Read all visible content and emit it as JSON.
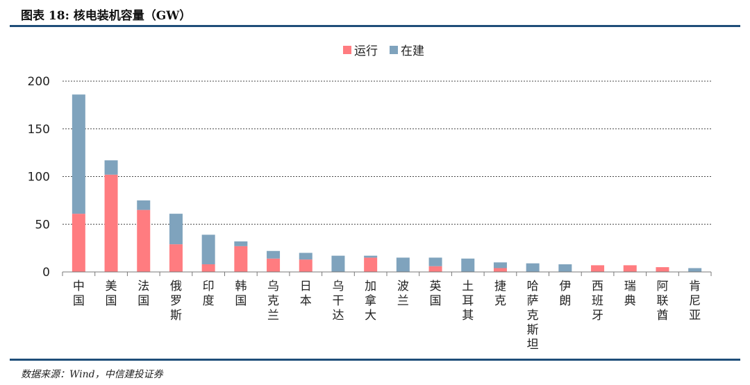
{
  "figure": {
    "title": "图表 18: 核电装机容量（GW）",
    "source": "数据来源：Wind，中信建投证券"
  },
  "colors": {
    "running": "#ff7c80",
    "building": "#7fa3bd",
    "rule": "#1f4e79"
  },
  "chart_data": {
    "type": "bar",
    "stacked": true,
    "title": "",
    "xlabel": "",
    "ylabel": "",
    "ylim": [
      0,
      200
    ],
    "yticks": [
      0,
      50,
      100,
      150,
      200
    ],
    "grid": "horizontal dashed",
    "legend_position": "top-center",
    "categories": [
      "中国",
      "美国",
      "法国",
      "俄罗斯",
      "印度",
      "韩国",
      "乌克兰",
      "日本",
      "乌干达",
      "加拿大",
      "波兰",
      "英国",
      "土耳其",
      "捷克",
      "哈萨克斯坦",
      "伊朗",
      "西班牙",
      "瑞典",
      "阿联酋",
      "肯尼亚"
    ],
    "series": [
      {
        "name": "运行",
        "values": [
          61,
          102,
          65,
          29,
          8,
          27,
          14,
          13,
          0,
          15,
          0,
          6,
          0,
          4,
          0,
          0,
          7,
          7,
          5,
          0
        ]
      },
      {
        "name": "在建",
        "values": [
          125,
          15,
          10,
          32,
          31,
          5,
          8,
          7,
          17,
          2,
          15,
          9,
          14,
          6,
          9,
          8,
          0,
          0,
          0,
          4
        ]
      }
    ]
  }
}
